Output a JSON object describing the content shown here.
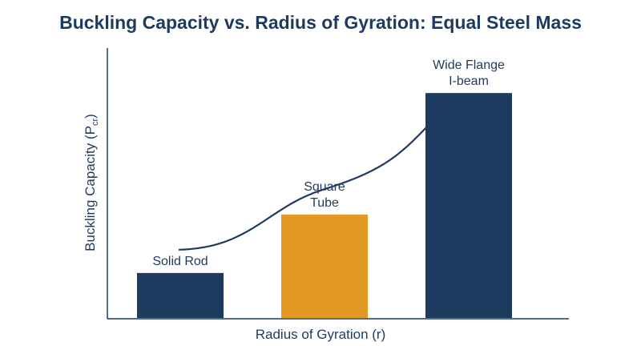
{
  "chart_data": {
    "type": "bar",
    "title": "Buckling Capacity vs. Radius of Gyration: Equal Steel Mass",
    "xlabel": "Radius of Gyration (r)",
    "ylabel": {
      "main": "Buckling Capacity (P",
      "subscript": "cr",
      "close": ")"
    },
    "categories": [
      {
        "label_lines": [
          "Solid Rod"
        ],
        "value": 0.2,
        "color": "#1d3a5f"
      },
      {
        "label_lines": [
          "Square",
          "Tube"
        ],
        "value": 0.46,
        "color": "#e39a25"
      },
      {
        "label_lines": [
          "Wide Flange",
          "I-beam"
        ],
        "value": 1.0,
        "color": "#1d3a5f"
      }
    ],
    "ylim": [
      0,
      1.2
    ],
    "trend_line": {
      "color": "#1d3a5f"
    },
    "grid": false,
    "legend": "none",
    "colors": {
      "text": "#1d3a5f",
      "axis": "#1d3a5f"
    }
  }
}
